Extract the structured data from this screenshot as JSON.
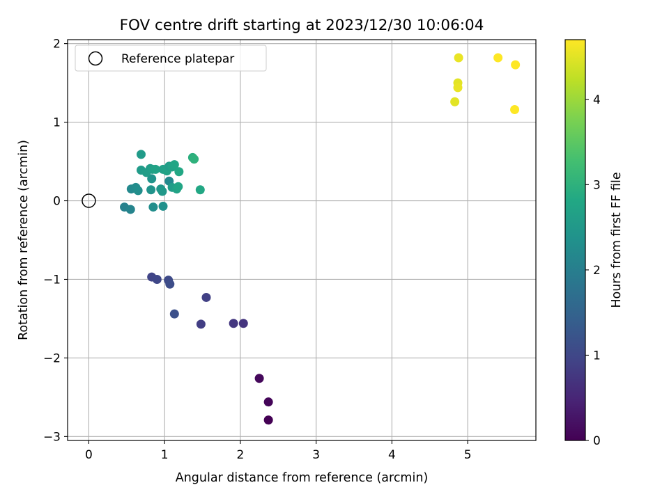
{
  "chart_data": {
    "type": "scatter",
    "title": "FOV centre drift starting at 2023/12/30 10:06:04",
    "xlabel": "Angular distance from reference (arcmin)",
    "ylabel": "Rotation from reference (arcmin)",
    "xlim": [
      -0.28,
      5.9
    ],
    "ylim": [
      -3.05,
      2.05
    ],
    "xticks": [
      0,
      1,
      2,
      3,
      4,
      5
    ],
    "yticks": [
      -3,
      -2,
      -1,
      0,
      1,
      2
    ],
    "xtick_labels": [
      "0",
      "1",
      "2",
      "3",
      "4",
      "5"
    ],
    "ytick_labels": [
      "−3",
      "−2",
      "−1",
      "0",
      "1",
      "2"
    ],
    "grid": true,
    "legend": {
      "placement": "upper-left",
      "entries": [
        {
          "label": "Reference platepar",
          "marker": "open-circle"
        }
      ]
    },
    "reference_point": {
      "x": 0,
      "y": 0
    },
    "colorbar": {
      "label": "Hours from first FF file",
      "range": [
        0,
        4.7
      ],
      "ticks": [
        0,
        1,
        2,
        3,
        4
      ],
      "tick_labels": [
        "0",
        "1",
        "2",
        "3",
        "4"
      ],
      "colormap": "viridis"
    },
    "points": [
      {
        "x": 2.37,
        "y": -2.79,
        "c": 0.0
      },
      {
        "x": 2.37,
        "y": -2.56,
        "c": 0.05
      },
      {
        "x": 2.25,
        "y": -2.26,
        "c": 0.1
      },
      {
        "x": 2.04,
        "y": -1.56,
        "c": 0.7
      },
      {
        "x": 1.91,
        "y": -1.56,
        "c": 0.75
      },
      {
        "x": 1.48,
        "y": -1.57,
        "c": 0.85
      },
      {
        "x": 1.55,
        "y": -1.23,
        "c": 0.9
      },
      {
        "x": 1.13,
        "y": -1.44,
        "c": 1.15
      },
      {
        "x": 0.83,
        "y": -0.97,
        "c": 0.95
      },
      {
        "x": 0.9,
        "y": -1.0,
        "c": 1.0
      },
      {
        "x": 1.05,
        "y": -1.01,
        "c": 1.05
      },
      {
        "x": 1.07,
        "y": -1.06,
        "c": 1.1
      },
      {
        "x": 0.47,
        "y": -0.08,
        "c": 2.05
      },
      {
        "x": 0.55,
        "y": -0.11,
        "c": 2.1
      },
      {
        "x": 0.85,
        "y": -0.08,
        "c": 2.3
      },
      {
        "x": 0.98,
        "y": -0.07,
        "c": 2.35
      },
      {
        "x": 0.56,
        "y": 0.15,
        "c": 2.2
      },
      {
        "x": 0.62,
        "y": 0.17,
        "c": 2.25
      },
      {
        "x": 0.65,
        "y": 0.13,
        "c": 2.3
      },
      {
        "x": 0.82,
        "y": 0.14,
        "c": 2.4
      },
      {
        "x": 0.95,
        "y": 0.15,
        "c": 2.45
      },
      {
        "x": 0.97,
        "y": 0.12,
        "c": 2.5
      },
      {
        "x": 0.83,
        "y": 0.28,
        "c": 2.4
      },
      {
        "x": 1.06,
        "y": 0.25,
        "c": 2.2
      },
      {
        "x": 1.1,
        "y": 0.17,
        "c": 2.6
      },
      {
        "x": 1.16,
        "y": 0.15,
        "c": 2.7
      },
      {
        "x": 1.18,
        "y": 0.18,
        "c": 2.75
      },
      {
        "x": 1.47,
        "y": 0.14,
        "c": 2.8
      },
      {
        "x": 0.69,
        "y": 0.39,
        "c": 2.55
      },
      {
        "x": 0.76,
        "y": 0.36,
        "c": 2.6
      },
      {
        "x": 0.81,
        "y": 0.41,
        "c": 2.6
      },
      {
        "x": 0.84,
        "y": 0.4,
        "c": 2.65
      },
      {
        "x": 0.88,
        "y": 0.4,
        "c": 2.7
      },
      {
        "x": 0.98,
        "y": 0.4,
        "c": 2.65
      },
      {
        "x": 1.03,
        "y": 0.38,
        "c": 2.7
      },
      {
        "x": 1.06,
        "y": 0.44,
        "c": 2.6
      },
      {
        "x": 1.1,
        "y": 0.43,
        "c": 2.7
      },
      {
        "x": 1.13,
        "y": 0.46,
        "c": 2.75
      },
      {
        "x": 1.19,
        "y": 0.37,
        "c": 2.8
      },
      {
        "x": 0.69,
        "y": 0.59,
        "c": 2.55
      },
      {
        "x": 1.37,
        "y": 0.55,
        "c": 2.95
      },
      {
        "x": 1.39,
        "y": 0.53,
        "c": 3.0
      },
      {
        "x": 4.88,
        "y": 1.82,
        "c": 4.55
      },
      {
        "x": 5.4,
        "y": 1.82,
        "c": 4.7
      },
      {
        "x": 5.63,
        "y": 1.73,
        "c": 4.7
      },
      {
        "x": 4.87,
        "y": 1.5,
        "c": 4.5
      },
      {
        "x": 4.87,
        "y": 1.44,
        "c": 4.55
      },
      {
        "x": 4.83,
        "y": 1.26,
        "c": 4.5
      },
      {
        "x": 5.62,
        "y": 1.16,
        "c": 4.7
      }
    ]
  }
}
